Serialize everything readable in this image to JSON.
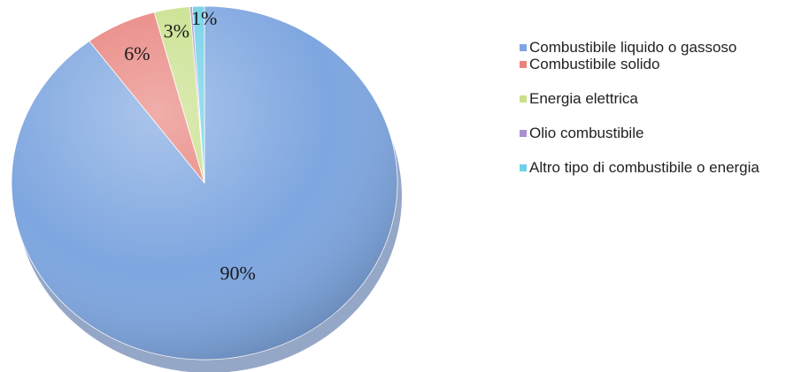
{
  "chart_data": {
    "type": "pie",
    "title": "",
    "labels": [
      "Combustibile liquido o gassoso",
      "Combustibile solido",
      "Energia elettrica",
      "Olio combustibile",
      "Altro tipo di combustibile o energia"
    ],
    "values": [
      90,
      6,
      3,
      0.2,
      1
    ],
    "data_labels": [
      "90%",
      "6%",
      "3%",
      "",
      "1%"
    ],
    "colors": [
      "#7ea6e0",
      "#e8827c",
      "#c8e08a",
      "#a98fd0",
      "#6ed0e8"
    ],
    "legend_position": "right"
  }
}
